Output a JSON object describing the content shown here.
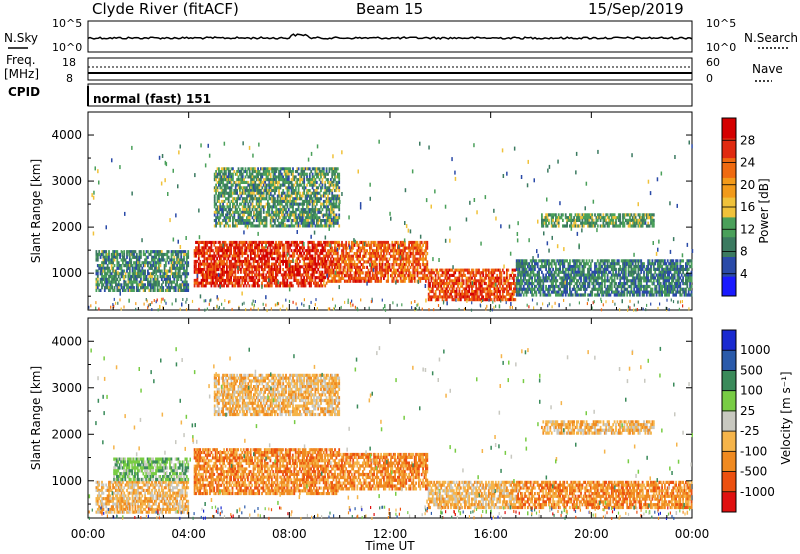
{
  "header": {
    "station": "Clyde River (fitACF)",
    "beam": "Beam 15",
    "date": "15/Sep/2019"
  },
  "params": {
    "nsky_label": "N.Sky",
    "nsky_ticks": [
      "10^5",
      "10^0"
    ],
    "nsearch_label": "N.Search",
    "nsearch_ticks": [
      "10^5",
      "10^0"
    ],
    "freq_label_1": "Freq.",
    "freq_label_2": "[MHz]",
    "freq_ticks": [
      "18",
      "8"
    ],
    "nave_label": "Nave",
    "nave_ticks": [
      "60",
      "0"
    ],
    "cpid_label": "CPID",
    "cpid_value": "normal (fast) 151"
  },
  "colors": {
    "power": [
      "#1a1aff",
      "#2a4aa8",
      "#3b7a60",
      "#4aa05a",
      "#f0c23a",
      "#f29a1a",
      "#ef6a10",
      "#e02a10",
      "#d40000"
    ],
    "velocity": [
      "#e01010",
      "#ec5010",
      "#f08a20",
      "#f5b44a",
      "#c8c8c0",
      "#78cc44",
      "#3a8a5a",
      "#2a5aaa",
      "#1a2ad0"
    ]
  },
  "chart_data": [
    {
      "type": "heatmap",
      "name": "Power",
      "ylabel": "Slant Range [km]",
      "xlabel": "",
      "yticks": [
        "1000",
        "2000",
        "3000",
        "4000"
      ],
      "yvalues": [
        1000,
        2000,
        3000,
        4000
      ],
      "ylim": [
        200,
        4500
      ],
      "xlim": [
        0,
        24
      ],
      "colorbar_label": "Power [dB]",
      "colorbar_ticks": [
        "4",
        "8",
        "12",
        "16",
        "20",
        "24",
        "28"
      ],
      "colorbar_values": [
        4,
        8,
        12,
        16,
        20,
        24,
        28
      ],
      "colorbar_range": [
        0,
        32
      ],
      "bands": [
        {
          "t0": 0.3,
          "t1": 4.0,
          "r0": 600,
          "r1": 1500,
          "val": 10
        },
        {
          "t0": 4.2,
          "t1": 9.5,
          "r0": 700,
          "r1": 1700,
          "val": 27
        },
        {
          "t0": 9.5,
          "t1": 13.5,
          "r0": 800,
          "r1": 1700,
          "val": 24
        },
        {
          "t0": 13.5,
          "t1": 17.0,
          "r0": 400,
          "r1": 1100,
          "val": 25
        },
        {
          "t0": 17.0,
          "t1": 24.0,
          "r0": 500,
          "r1": 1300,
          "val": 9
        },
        {
          "t0": 5.0,
          "t1": 10.0,
          "r0": 2000,
          "r1": 3300,
          "val": 11
        },
        {
          "t0": 18.0,
          "t1": 22.5,
          "r0": 2000,
          "r1": 2300,
          "val": 12
        }
      ]
    },
    {
      "type": "heatmap",
      "name": "Velocity",
      "ylabel": "Slant Range [km]",
      "xlabel": "Time UT",
      "yticks": [
        "1000",
        "2000",
        "3000",
        "4000"
      ],
      "yvalues": [
        1000,
        2000,
        3000,
        4000
      ],
      "ylim": [
        200,
        4500
      ],
      "xlim": [
        0,
        24
      ],
      "xticks": [
        "00:00",
        "04:00",
        "08:00",
        "12:00",
        "16:00",
        "20:00",
        "00:00"
      ],
      "xvalues": [
        0,
        4,
        8,
        12,
        16,
        20,
        24
      ],
      "colorbar_label": "Velocity [m s⁻¹]",
      "colorbar_ticks": [
        "1000",
        "500",
        "100",
        "25",
        "-25",
        "-100",
        "-500",
        "-1000"
      ],
      "bands": [
        {
          "t0": 0.3,
          "t1": 4.0,
          "r0": 300,
          "r1": 1000,
          "val": "-25"
        },
        {
          "t0": 1.0,
          "t1": 4.0,
          "r0": 1000,
          "r1": 1500,
          "val": "100"
        },
        {
          "t0": 4.2,
          "t1": 10.0,
          "r0": 700,
          "r1": 1700,
          "val": "-100"
        },
        {
          "t0": 10.0,
          "t1": 13.5,
          "r0": 800,
          "r1": 1600,
          "val": "-100"
        },
        {
          "t0": 13.5,
          "t1": 17.0,
          "r0": 400,
          "r1": 1000,
          "val": "-25"
        },
        {
          "t0": 17.0,
          "t1": 24.0,
          "r0": 400,
          "r1": 1000,
          "val": "-100"
        },
        {
          "t0": 18.0,
          "t1": 22.5,
          "r0": 2000,
          "r1": 2300,
          "val": "-25"
        },
        {
          "t0": 5.0,
          "t1": 10.0,
          "r0": 2400,
          "r1": 3300,
          "val": "-25"
        }
      ]
    }
  ]
}
